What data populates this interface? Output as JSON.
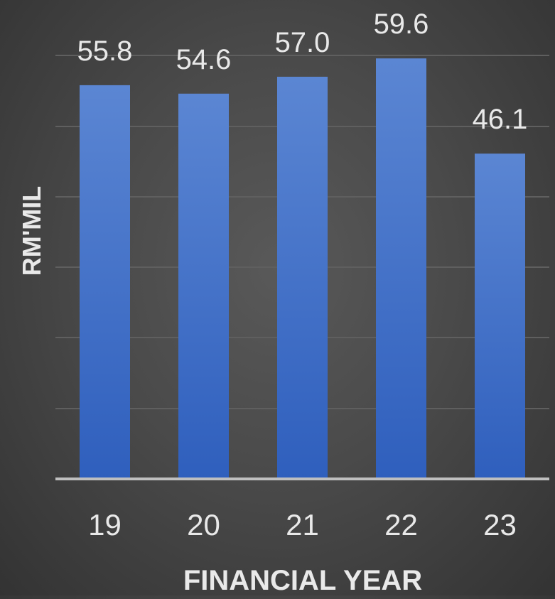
{
  "chart_data": {
    "type": "bar",
    "title": "",
    "xlabel": "FINANCIAL YEAR",
    "ylabel": "RM'MIL",
    "categories": [
      "19",
      "20",
      "21",
      "22",
      "23"
    ],
    "values": [
      55.8,
      54.6,
      57.0,
      59.6,
      46.1
    ],
    "value_labels": [
      "55.8",
      "54.6",
      "57.0",
      "59.6",
      "46.1"
    ],
    "ylim": [
      0,
      60
    ],
    "grid": true,
    "legend": "none",
    "colors": {
      "bar_top": "#5b86d3",
      "bar_bottom": "#2f5fbd",
      "text": "#e9e9e9",
      "grid": "#5f5f5f",
      "baseline": "#bfbfbf"
    }
  }
}
